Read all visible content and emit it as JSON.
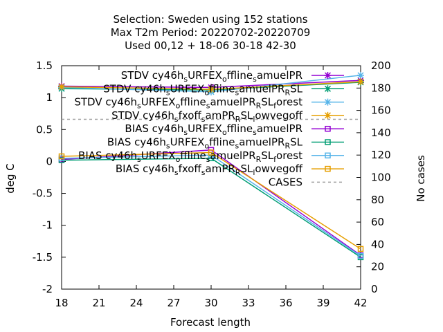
{
  "title_lines": [
    "Selection: Sweden using   152 stations",
    "Max T2m   Period: 20220702-20220709",
    "Used  00,12  + 18-06 30-18 42-30"
  ],
  "chart_data": {
    "type": "line",
    "x": [
      18,
      30,
      42
    ],
    "xlabel": "Forecast length",
    "ylabel": "deg C",
    "y2label": "No cases",
    "xlim": [
      18,
      42
    ],
    "ylim": [
      -2,
      1.5
    ],
    "y2lim": [
      0,
      200
    ],
    "xticks": [
      "18",
      "21",
      "24",
      "27",
      "30",
      "33",
      "36",
      "39",
      "42"
    ],
    "yticks": [
      "1.5",
      "1",
      "0.5",
      "0",
      "-0.5",
      "-1",
      "-1.5",
      "-2"
    ],
    "y2ticks": [
      "200",
      "180",
      "160",
      "140",
      "120",
      "100",
      "80",
      "60",
      "40",
      "20",
      "0"
    ],
    "legend_position": "top-right inside",
    "series": [
      {
        "name": "STDV cy46h_sURFEX_offline_samuelPR",
        "axis": "y",
        "marker": "x-star",
        "color": "#9400d3",
        "values": [
          1.18,
          1.16,
          1.27
        ]
      },
      {
        "name": "STDV cy46h_sURFEX_offline_samuelPR_RSL",
        "axis": "y",
        "marker": "x-star",
        "color": "#009e73",
        "values": [
          1.14,
          1.12,
          1.24
        ]
      },
      {
        "name": "STDV cy46h_sURFEX_offline_samuelPR_RSL_forest",
        "axis": "y",
        "marker": "x-star",
        "color": "#56b4e9",
        "values": [
          1.16,
          1.09,
          1.35
        ]
      },
      {
        "name": "STDV cy46h_sfxoff_samPR_RSL_lowvegoff",
        "axis": "y",
        "marker": "x-star",
        "color": "#e69f00",
        "values": [
          1.17,
          1.13,
          1.25
        ]
      },
      {
        "name": "BIAS cy46h_sURFEX_offline_samuelPR",
        "axis": "y",
        "marker": "square",
        "color": "#9400d3",
        "values": [
          0.03,
          0.18,
          -1.47
        ]
      },
      {
        "name": "BIAS cy46h_sURFEX_offline_samuelPR_RSL",
        "axis": "y",
        "marker": "square",
        "color": "#009e73",
        "values": [
          0.02,
          0.05,
          -1.5
        ]
      },
      {
        "name": "BIAS cy46h_sURFEX_offline_samuelPR_RSL_forest",
        "axis": "y",
        "marker": "square",
        "color": "#56b4e9",
        "values": [
          0.05,
          0.1,
          -1.48
        ]
      },
      {
        "name": "BIAS cy46h_sfxoff_samPR_RSL_lowvegoff",
        "axis": "y",
        "marker": "square",
        "color": "#e69f00",
        "values": [
          0.08,
          0.14,
          -1.37
        ]
      },
      {
        "name": "CASES",
        "axis": "y2",
        "marker": "none",
        "color": "#a0a0a0",
        "dashed": true,
        "values": [
          152,
          152,
          152
        ]
      }
    ],
    "grid": false
  },
  "legend": [
    {
      "pre": "STDV cy46h",
      "segs": [
        [
          "s",
          "sub"
        ],
        [
          "URFEX",
          ""
        ],
        [
          "o",
          "sub"
        ],
        [
          "ffline",
          ""
        ],
        [
          "s",
          "sub"
        ],
        [
          "amuelPR",
          ""
        ]
      ]
    },
    {
      "pre": "STDV cy46h",
      "segs": [
        [
          "s",
          "sub"
        ],
        [
          "URFEX",
          ""
        ],
        [
          "o",
          "sub"
        ],
        [
          "ffline",
          ""
        ],
        [
          "s",
          "sub"
        ],
        [
          "amuelPR",
          ""
        ],
        [
          "R",
          "sub"
        ],
        [
          "SL",
          ""
        ]
      ]
    },
    {
      "pre": "STDV cy46h",
      "segs": [
        [
          "s",
          "sub"
        ],
        [
          "URFEX",
          ""
        ],
        [
          "o",
          "sub"
        ],
        [
          "ffline",
          ""
        ],
        [
          "s",
          "sub"
        ],
        [
          "amuelPR",
          ""
        ],
        [
          "R",
          "sub"
        ],
        [
          "SL",
          ""
        ],
        [
          "f",
          "sub"
        ],
        [
          "orest",
          ""
        ]
      ]
    },
    {
      "pre": "STDV cy46h",
      "segs": [
        [
          "s",
          "sub"
        ],
        [
          "fxoff",
          ""
        ],
        [
          "s",
          "sub"
        ],
        [
          "amPR",
          ""
        ],
        [
          "R",
          "sub"
        ],
        [
          "SL",
          ""
        ],
        [
          "l",
          "sub"
        ],
        [
          "owvegoff",
          ""
        ]
      ]
    },
    {
      "pre": "BIAS cy46h",
      "segs": [
        [
          "s",
          "sub"
        ],
        [
          "URFEX",
          ""
        ],
        [
          "o",
          "sub"
        ],
        [
          "ffline",
          ""
        ],
        [
          "s",
          "sub"
        ],
        [
          "amuelPR",
          ""
        ]
      ]
    },
    {
      "pre": "BIAS cy46h",
      "segs": [
        [
          "s",
          "sub"
        ],
        [
          "URFEX",
          ""
        ],
        [
          "o",
          "sub"
        ],
        [
          "ffline",
          ""
        ],
        [
          "s",
          "sub"
        ],
        [
          "amuelPR",
          ""
        ],
        [
          "R",
          "sub"
        ],
        [
          "SL",
          ""
        ]
      ]
    },
    {
      "pre": "BIAS cy46h",
      "segs": [
        [
          "s",
          "sub"
        ],
        [
          "URFEX",
          ""
        ],
        [
          "o",
          "sub"
        ],
        [
          "ffline",
          ""
        ],
        [
          "s",
          "sub"
        ],
        [
          "amuelPR",
          ""
        ],
        [
          "R",
          "sub"
        ],
        [
          "SL",
          ""
        ],
        [
          "f",
          "sub"
        ],
        [
          "orest",
          ""
        ]
      ]
    },
    {
      "pre": "BIAS cy46h",
      "segs": [
        [
          "s",
          "sub"
        ],
        [
          "fxoff",
          ""
        ],
        [
          "s",
          "sub"
        ],
        [
          "amPR",
          ""
        ],
        [
          "R",
          "sub"
        ],
        [
          "SL",
          ""
        ],
        [
          "l",
          "sub"
        ],
        [
          "owvegoff",
          ""
        ]
      ]
    },
    {
      "pre": "CASES",
      "segs": []
    }
  ]
}
